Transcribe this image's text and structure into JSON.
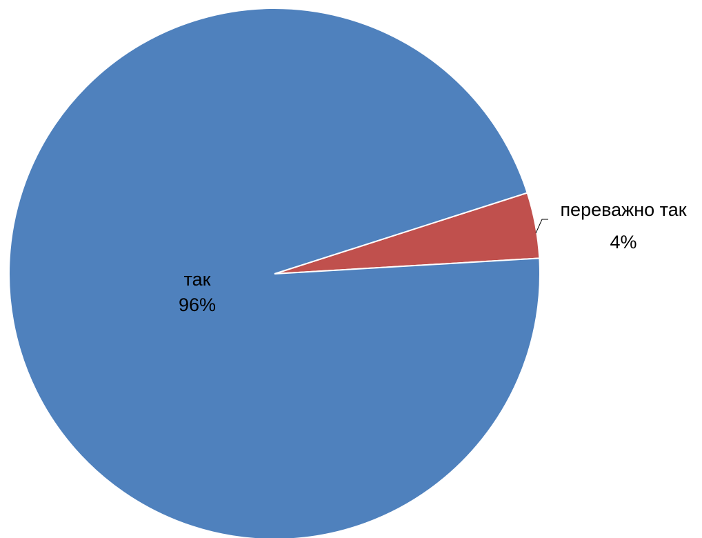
{
  "chart_data": {
    "type": "pie",
    "title": "",
    "legend": "none",
    "labels": [
      "так",
      "переважно так"
    ],
    "values": [
      96,
      4
    ],
    "value_labels": [
      "96%",
      "4%"
    ],
    "colors": [
      "#4F81BD",
      "#C0504D"
    ],
    "border_color": "#FFFFFF"
  }
}
